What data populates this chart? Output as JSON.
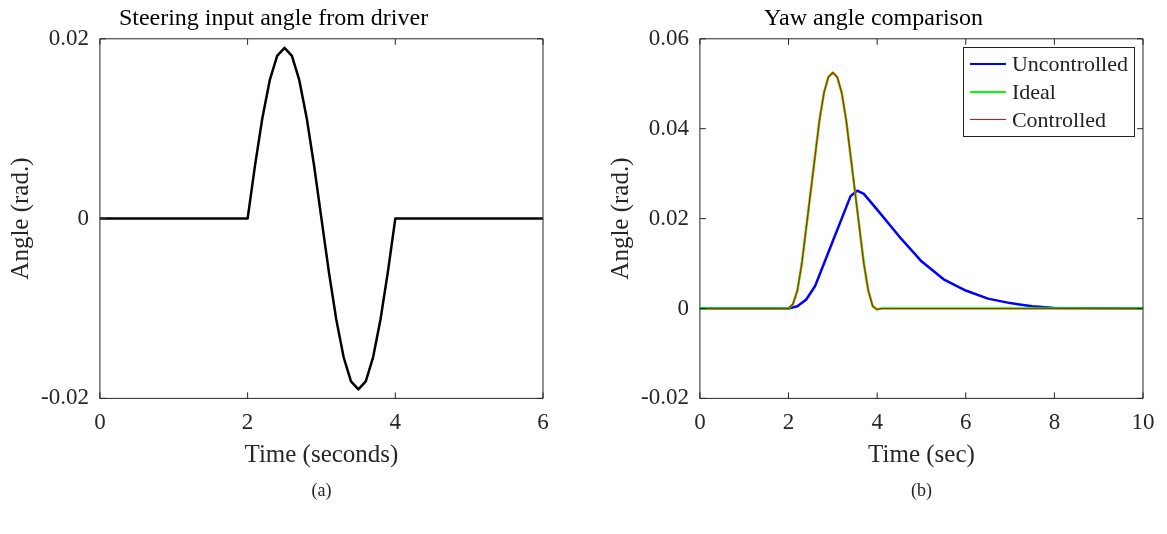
{
  "chart_data": [
    {
      "type": "line",
      "title": "Steering input angle from driver",
      "xlabel": "Time (seconds)",
      "ylabel": "Angle (rad.)",
      "xlim": [
        0,
        6
      ],
      "xticks": [
        0,
        2,
        4,
        6
      ],
      "ylim": [
        -0.02,
        0.02
      ],
      "yticks": [
        -0.02,
        0,
        0.02
      ],
      "grid": false,
      "legend": false,
      "annotations": [
        "(a)"
      ],
      "series": [
        {
          "color": "#000000",
          "x": [
            0,
            2,
            2.1,
            2.2,
            2.3,
            2.4,
            2.5,
            2.6,
            2.7,
            2.8,
            2.9,
            3,
            3.1,
            3.2,
            3.3,
            3.4,
            3.5,
            3.6,
            3.7,
            3.8,
            3.9,
            4,
            6
          ],
          "values": [
            0,
            0,
            0.0059,
            0.0112,
            0.0154,
            0.0181,
            0.019,
            0.0181,
            0.0154,
            0.0112,
            0.0059,
            0,
            -0.0059,
            -0.0112,
            -0.0154,
            -0.0181,
            -0.019,
            -0.0181,
            -0.0154,
            -0.0112,
            -0.0059,
            0,
            0
          ]
        }
      ]
    },
    {
      "type": "line",
      "title": "Yaw angle comparison",
      "xlabel": "Time (sec)",
      "ylabel": "Angle (rad.)",
      "xlim": [
        0,
        10
      ],
      "xticks": [
        0,
        2,
        4,
        6,
        8,
        10
      ],
      "ylim": [
        -0.02,
        0.06
      ],
      "yticks": [
        -0.02,
        0,
        0.02,
        0.04,
        0.06
      ],
      "grid": false,
      "legend": "top right",
      "annotations": [
        "(b)"
      ],
      "series": [
        {
          "name": "Uncontrolled",
          "color": "#0000ff",
          "x": [
            0,
            2,
            2.2,
            2.4,
            2.6,
            2.8,
            3,
            3.2,
            3.4,
            3.55,
            3.7,
            4,
            4.5,
            5,
            5.5,
            6,
            6.5,
            7,
            7.5,
            8,
            10
          ],
          "values": [
            0,
            0,
            0.0005,
            0.002,
            0.005,
            0.01,
            0.015,
            0.02,
            0.025,
            0.0262,
            0.0255,
            0.022,
            0.016,
            0.0105,
            0.0065,
            0.004,
            0.0022,
            0.0012,
            0.0005,
            0.0001,
            0
          ]
        },
        {
          "name": "Ideal",
          "color": "#00ff00",
          "x": [
            0,
            2,
            2.1,
            2.2,
            2.3,
            2.4,
            2.5,
            2.6,
            2.7,
            2.8,
            2.9,
            3,
            3.1,
            3.2,
            3.3,
            3.4,
            3.5,
            3.6,
            3.7,
            3.8,
            3.9,
            4,
            4.1,
            10
          ],
          "values": [
            0,
            0,
            0.001,
            0.004,
            0.01,
            0.018,
            0.026,
            0.034,
            0.042,
            0.048,
            0.0515,
            0.0525,
            0.0515,
            0.048,
            0.042,
            0.034,
            0.026,
            0.018,
            0.01,
            0.004,
            0.0005,
            -0.0002,
            0,
            0
          ]
        },
        {
          "name": "Controlled",
          "color": "#ff0000",
          "x": [
            0,
            2,
            2.1,
            2.2,
            2.3,
            2.4,
            2.5,
            2.6,
            2.7,
            2.8,
            2.9,
            3,
            3.1,
            3.2,
            3.3,
            3.4,
            3.5,
            3.6,
            3.7,
            3.8,
            3.9,
            4,
            4.1,
            10
          ],
          "values": [
            0,
            0,
            0.001,
            0.004,
            0.01,
            0.018,
            0.026,
            0.034,
            0.042,
            0.048,
            0.0515,
            0.0525,
            0.0515,
            0.048,
            0.042,
            0.034,
            0.026,
            0.018,
            0.01,
            0.004,
            0.0005,
            -0.0002,
            0,
            0
          ]
        }
      ]
    }
  ]
}
